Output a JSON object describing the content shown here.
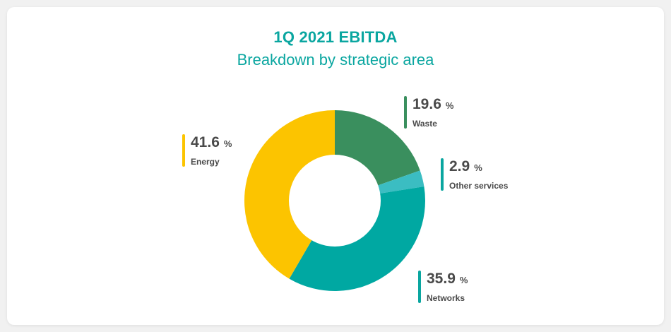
{
  "chart_data": {
    "type": "pie",
    "title": "1Q 2021 EBITDA",
    "subtitle": "Breakdown by strategic area",
    "unit": "%",
    "slices": [
      {
        "name": "Waste",
        "value": 19.6,
        "value_label": "19.6",
        "color": "#3a8f5e"
      },
      {
        "name": "Other services",
        "value": 2.9,
        "value_label": "2.9",
        "color": "#3bbdc2"
      },
      {
        "name": "Networks",
        "value": 35.9,
        "value_label": "35.9",
        "color": "#00a8a2"
      },
      {
        "name": "Energy",
        "value": 41.6,
        "value_label": "41.6",
        "color": "#fcc400"
      }
    ],
    "callout_bar_colors": {
      "Energy": "#fcc400",
      "Waste": "#3a8f5e",
      "Other services": "#0aa6a0",
      "Networks": "#0aa6a0"
    }
  }
}
